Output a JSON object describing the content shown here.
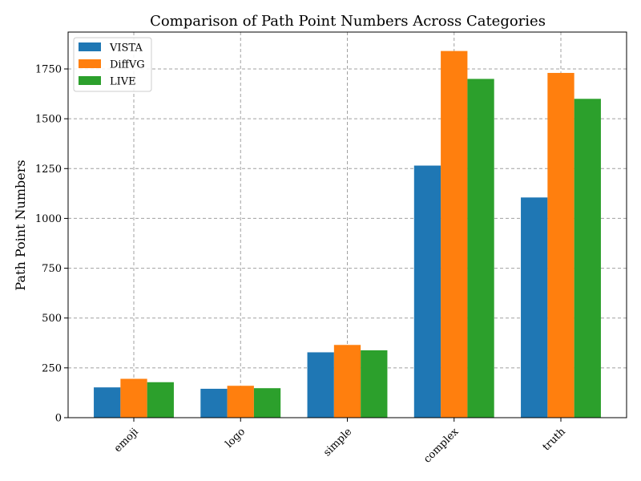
{
  "chart_data": {
    "type": "bar",
    "title": "Comparison of Path Point Numbers Across Categories",
    "xlabel": "",
    "ylabel": "Path Point Numbers",
    "categories": [
      "emoji",
      "logo",
      "simple",
      "complex",
      "truth"
    ],
    "series": [
      {
        "name": "VISTA",
        "color": "#1f77b4",
        "values": [
          152,
          145,
          328,
          1265,
          1105
        ]
      },
      {
        "name": "DiffVG",
        "color": "#ff7f0e",
        "values": [
          195,
          160,
          365,
          1840,
          1730
        ]
      },
      {
        "name": "LIVE",
        "color": "#2ca02c",
        "values": [
          178,
          148,
          338,
          1700,
          1600
        ]
      }
    ],
    "ylim": [
      0,
      1935
    ],
    "yticks": [
      0,
      250,
      500,
      750,
      1000,
      1250,
      1500,
      1750
    ],
    "grid": true,
    "legend_position": "top-left"
  }
}
